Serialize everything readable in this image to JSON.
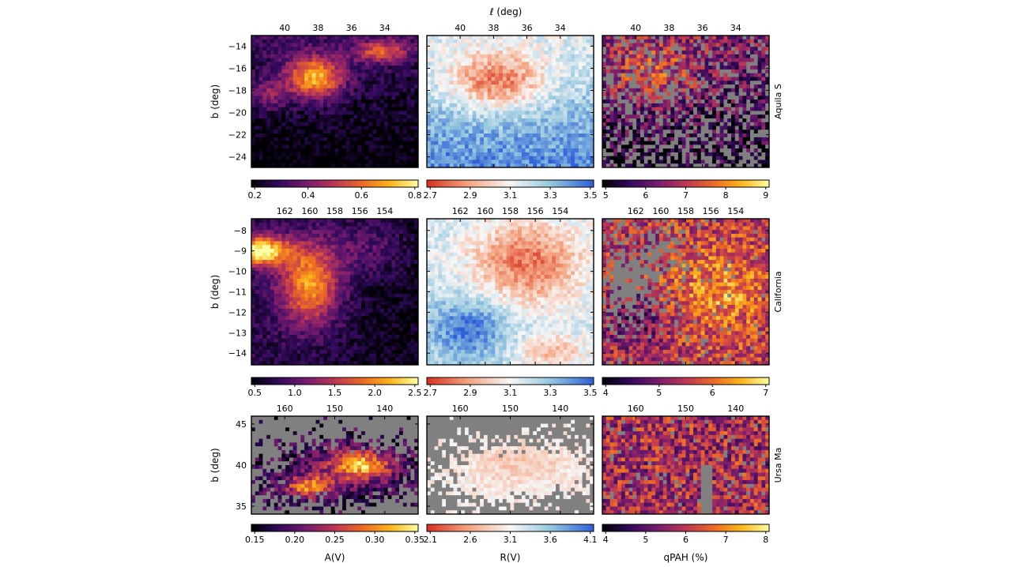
{
  "figure": {
    "top_axis_label": "ℓ (deg)",
    "left_axis_label": "b (deg)",
    "rows": [
      {
        "region": "Aquila S",
        "x_ticks": [
          "40",
          "38",
          "36",
          "34"
        ],
        "y_ticks": [
          "−14",
          "−16",
          "−18",
          "−20",
          "−22",
          "−24"
        ],
        "colorbars": [
          {
            "ticks": [
              "0.2",
              "0.4",
              "0.6",
              "0.8"
            ]
          },
          {
            "ticks": [
              "2.7",
              "2.9",
              "3.1",
              "3.3",
              "3.5"
            ]
          },
          {
            "ticks": [
              "5",
              "6",
              "7",
              "8",
              "9"
            ]
          }
        ]
      },
      {
        "region": "California",
        "x_ticks": [
          "162",
          "160",
          "158",
          "156",
          "154"
        ],
        "y_ticks": [
          "−8",
          "−9",
          "−10",
          "−11",
          "−12",
          "−13",
          "−14"
        ],
        "colorbars": [
          {
            "ticks": [
              "0.5",
              "1.0",
              "1.5",
              "2.0",
              "2.5"
            ]
          },
          {
            "ticks": [
              "2.7",
              "2.9",
              "3.1",
              "3.3",
              "3.5"
            ]
          },
          {
            "ticks": [
              "4",
              "5",
              "6",
              "7"
            ]
          }
        ]
      },
      {
        "region": "Ursa Ma",
        "x_ticks": [
          "160",
          "150",
          "140"
        ],
        "y_ticks": [
          "45",
          "40",
          "35"
        ],
        "colorbars": [
          {
            "ticks": [
              "0.15",
              "0.20",
              "0.25",
              "0.30",
              "0.35"
            ]
          },
          {
            "ticks": [
              "2.1",
              "2.6",
              "3.1",
              "3.6",
              "4.1"
            ]
          },
          {
            "ticks": [
              "4",
              "5",
              "6",
              "7",
              "8"
            ]
          }
        ]
      }
    ],
    "column_labels": [
      "A(V)",
      "R(V)",
      "qPAH (%)"
    ],
    "colormaps": {
      "inferno": [
        "#000004",
        "#320a5e",
        "#781c6d",
        "#bc3754",
        "#ed6925",
        "#fbb61a",
        "#fcffa4"
      ],
      "rdbu": [
        "#d7301f",
        "#f4a582",
        "#f7f7f7",
        "#92c5de",
        "#2c5fd8"
      ],
      "masked": "#808080"
    }
  }
}
